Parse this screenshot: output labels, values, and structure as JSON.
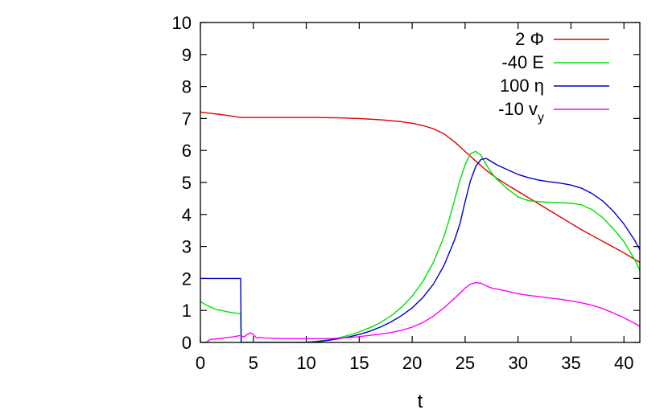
{
  "chart_data": {
    "type": "line",
    "title": "",
    "xlabel": "t",
    "ylabel": "",
    "xlim": [
      0,
      41.5
    ],
    "ylim": [
      0,
      10
    ],
    "grid": false,
    "legend_position": "top-right",
    "x_ticks": [
      0,
      5,
      10,
      15,
      20,
      25,
      30,
      35,
      40
    ],
    "y_ticks": [
      0,
      1,
      2,
      3,
      4,
      5,
      6,
      7,
      8,
      9,
      10
    ],
    "x_tick_labels": [
      "0",
      "5",
      "10",
      "15",
      "20",
      "25",
      "30",
      "35",
      "40"
    ],
    "y_tick_labels": [
      "0",
      "1",
      "2",
      "3",
      "4",
      "5",
      "6",
      "7",
      "8",
      "9",
      "10"
    ],
    "series": [
      {
        "name": "2 Φ",
        "name_sub": "",
        "color": "#e00000",
        "x": [
          0,
          1,
          2,
          3,
          3.8,
          5,
          7,
          9,
          11,
          13,
          15,
          17,
          19,
          20,
          21,
          22,
          23,
          24,
          25,
          26,
          27,
          28,
          29,
          30,
          31,
          32,
          33,
          34,
          35,
          36,
          37,
          38,
          39,
          40,
          41,
          41.5
        ],
        "y": [
          7.2,
          7.16,
          7.12,
          7.07,
          7.03,
          7.03,
          7.03,
          7.03,
          7.03,
          7.02,
          7.0,
          6.96,
          6.9,
          6.85,
          6.78,
          6.68,
          6.52,
          6.27,
          5.97,
          5.67,
          5.38,
          5.13,
          4.92,
          4.72,
          4.52,
          4.32,
          4.12,
          3.92,
          3.72,
          3.52,
          3.34,
          3.16,
          2.98,
          2.8,
          2.6,
          2.5
        ]
      },
      {
        "name": "-40 E",
        "name_sub": "",
        "color": "#00e000",
        "x": [
          0,
          0.5,
          1,
          1.5,
          2,
          2.5,
          3,
          3.5,
          3.8,
          3.85,
          5,
          7,
          9,
          10,
          11,
          12,
          13,
          14,
          15,
          16,
          17,
          18,
          19,
          20,
          21,
          22,
          23,
          23.5,
          24,
          24.5,
          25,
          25.5,
          26,
          26.5,
          27,
          27.5,
          28,
          29,
          30,
          31,
          32,
          33,
          34,
          35,
          36,
          37,
          38,
          39,
          40,
          41,
          41.5
        ],
        "y": [
          1.28,
          1.18,
          1.1,
          1.03,
          1.0,
          0.96,
          0.93,
          0.91,
          0.9,
          0.0,
          0.0,
          0.0,
          0.0,
          0.01,
          0.04,
          0.08,
          0.14,
          0.22,
          0.33,
          0.46,
          0.62,
          0.83,
          1.1,
          1.45,
          1.9,
          2.5,
          3.3,
          3.85,
          4.45,
          5.05,
          5.55,
          5.9,
          5.97,
          5.85,
          5.55,
          5.3,
          5.1,
          4.8,
          4.55,
          4.43,
          4.4,
          4.38,
          4.37,
          4.35,
          4.3,
          4.15,
          3.9,
          3.55,
          3.15,
          2.6,
          2.25
        ]
      },
      {
        "name": "100 η",
        "name_sub": "",
        "color": "#0000c8",
        "x": [
          0,
          1,
          2,
          3,
          3.8,
          3.85,
          5,
          7,
          9,
          10,
          11,
          12,
          13,
          14,
          15,
          16,
          17,
          18,
          19,
          20,
          21,
          22,
          23,
          24,
          24.5,
          25,
          25.5,
          26,
          26.5,
          27,
          27.5,
          28,
          29,
          30,
          31,
          32,
          33,
          34,
          35,
          36,
          37,
          38,
          39,
          40,
          41,
          41.5
        ],
        "y": [
          2.0,
          2.0,
          2.0,
          2.0,
          2.0,
          0.0,
          0.0,
          0.0,
          0.0,
          0.0,
          0.02,
          0.06,
          0.11,
          0.17,
          0.25,
          0.35,
          0.48,
          0.64,
          0.84,
          1.08,
          1.4,
          1.82,
          2.4,
          3.2,
          3.7,
          4.4,
          5.05,
          5.5,
          5.72,
          5.75,
          5.65,
          5.55,
          5.4,
          5.25,
          5.15,
          5.07,
          5.02,
          4.98,
          4.92,
          4.82,
          4.65,
          4.42,
          4.1,
          3.7,
          3.2,
          2.9
        ]
      },
      {
        "name": "-10 v",
        "name_sub": "y",
        "color": "#ff00ff",
        "x": [
          0,
          0.5,
          1,
          1.5,
          2,
          2.5,
          3,
          3.5,
          3.8,
          4.1,
          4.4,
          4.7,
          5.0,
          5.3,
          5.6,
          6,
          7,
          8,
          9,
          10,
          11,
          12,
          13,
          14,
          15,
          16,
          17,
          18,
          19,
          20,
          21,
          22,
          23,
          24,
          25,
          25.5,
          26,
          26.5,
          27,
          27.5,
          28,
          29,
          30,
          31,
          32,
          33,
          34,
          35,
          36,
          37,
          38,
          39,
          40,
          41,
          41.5
        ],
        "y": [
          0.0,
          0.0,
          0.1,
          0.11,
          0.13,
          0.15,
          0.17,
          0.2,
          0.22,
          0.17,
          0.24,
          0.3,
          0.25,
          0.14,
          0.16,
          0.14,
          0.13,
          0.12,
          0.12,
          0.12,
          0.12,
          0.12,
          0.13,
          0.15,
          0.18,
          0.22,
          0.26,
          0.31,
          0.38,
          0.48,
          0.62,
          0.82,
          1.08,
          1.38,
          1.7,
          1.82,
          1.87,
          1.85,
          1.77,
          1.7,
          1.67,
          1.6,
          1.52,
          1.47,
          1.43,
          1.39,
          1.35,
          1.3,
          1.24,
          1.16,
          1.06,
          0.92,
          0.77,
          0.6,
          0.5
        ]
      }
    ]
  }
}
